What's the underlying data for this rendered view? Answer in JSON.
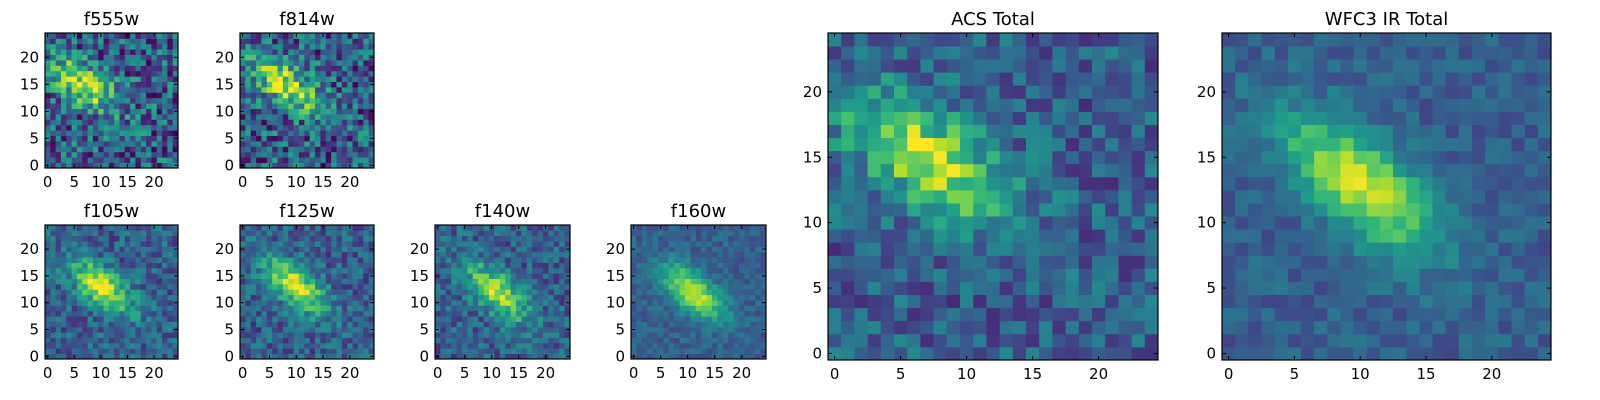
{
  "chart_data": [
    {
      "type": "heatmap",
      "title": "f555w",
      "colormap": "viridis",
      "xlim": [
        -0.5,
        24.5
      ],
      "ylim": [
        -0.5,
        24.5
      ],
      "xticks": [
        0,
        5,
        10,
        15,
        20
      ],
      "yticks": [
        0,
        5,
        10,
        15,
        20
      ],
      "peak": {
        "x": 7,
        "y": 15
      },
      "peak_angle_deg": -33,
      "noise": "high"
    },
    {
      "type": "heatmap",
      "title": "f814w",
      "colormap": "viridis",
      "xlim": [
        -0.5,
        24.5
      ],
      "ylim": [
        -0.5,
        24.5
      ],
      "xticks": [
        0,
        5,
        10,
        15,
        20
      ],
      "yticks": [
        0,
        5,
        10,
        15,
        20
      ],
      "peak": {
        "x": 8,
        "y": 15
      },
      "peak_angle_deg": -35,
      "noise": "high"
    },
    {
      "type": "heatmap",
      "title": "f105w",
      "colormap": "viridis",
      "xlim": [
        -0.5,
        24.5
      ],
      "ylim": [
        -0.5,
        24.5
      ],
      "xticks": [
        0,
        5,
        10,
        15,
        20
      ],
      "yticks": [
        0,
        5,
        10,
        15,
        20
      ],
      "peak": {
        "x": 10,
        "y": 13
      },
      "peak_angle_deg": -40,
      "noise": "medium"
    },
    {
      "type": "heatmap",
      "title": "f125w",
      "colormap": "viridis",
      "xlim": [
        -0.5,
        24.5
      ],
      "ylim": [
        -0.5,
        24.5
      ],
      "xticks": [
        0,
        5,
        10,
        15,
        20
      ],
      "yticks": [
        0,
        5,
        10,
        15,
        20
      ],
      "peak": {
        "x": 10,
        "y": 13
      },
      "peak_angle_deg": -40,
      "noise": "medium"
    },
    {
      "type": "heatmap",
      "title": "f140w",
      "colormap": "viridis",
      "xlim": [
        -0.5,
        24.5
      ],
      "ylim": [
        -0.5,
        24.5
      ],
      "xticks": [
        0,
        5,
        10,
        15,
        20
      ],
      "yticks": [
        0,
        5,
        10,
        15,
        20
      ],
      "peak": {
        "x": 11,
        "y": 12
      },
      "peak_angle_deg": -40,
      "noise": "medium"
    },
    {
      "type": "heatmap",
      "title": "f160w",
      "colormap": "viridis",
      "xlim": [
        -0.5,
        24.5
      ],
      "ylim": [
        -0.5,
        24.5
      ],
      "xticks": [
        0,
        5,
        10,
        15,
        20
      ],
      "yticks": [
        0,
        5,
        10,
        15,
        20
      ],
      "peak": {
        "x": 11,
        "y": 12
      },
      "peak_angle_deg": -40,
      "noise": "low"
    },
    {
      "type": "heatmap",
      "title": "ACS Total",
      "colormap": "viridis",
      "xlim": [
        -0.5,
        24.5
      ],
      "ylim": [
        -0.5,
        24.5
      ],
      "xticks": [
        0,
        5,
        10,
        15,
        20
      ],
      "yticks": [
        0,
        5,
        10,
        15,
        20
      ],
      "peak": {
        "x": 7,
        "y": 15
      },
      "peak_angle_deg": -35,
      "noise": "medium"
    },
    {
      "type": "heatmap",
      "title": "WFC3 IR Total",
      "colormap": "viridis",
      "xlim": [
        -0.5,
        24.5
      ],
      "ylim": [
        -0.5,
        24.5
      ],
      "xticks": [
        0,
        5,
        10,
        15,
        20
      ],
      "yticks": [
        0,
        5,
        10,
        15,
        20
      ],
      "peak": {
        "x": 10,
        "y": 13
      },
      "peak_angle_deg": -40,
      "noise": "low"
    }
  ]
}
